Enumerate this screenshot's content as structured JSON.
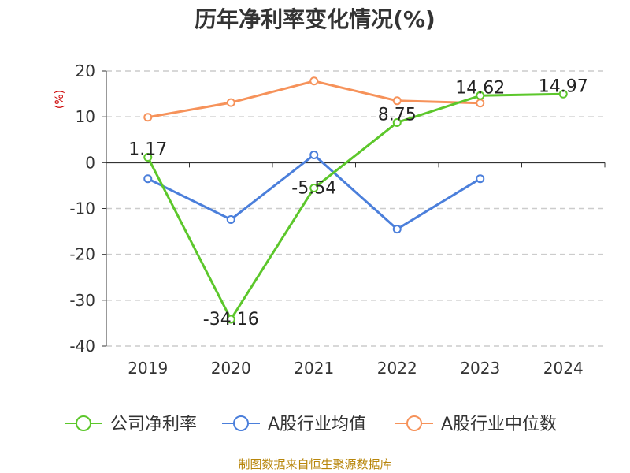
{
  "chart_data": {
    "type": "line",
    "title": "历年净利率变化情况(%)",
    "unit_label": "(%)",
    "x": [
      "2019",
      "2020",
      "2021",
      "2022",
      "2023",
      "2024"
    ],
    "ylim": [
      -40,
      20
    ],
    "yticks": [
      20,
      10,
      0,
      -10,
      -20,
      -30,
      -40
    ],
    "grid": true,
    "legend_position": "bottom",
    "series": [
      {
        "name": "公司净利率",
        "color": "#5cc72b",
        "values": [
          1.17,
          -34.16,
          -5.54,
          8.75,
          14.62,
          14.97
        ],
        "labels": [
          "1.17",
          "-34.16",
          "-5.54",
          "8.75",
          "14.62",
          "14.97"
        ]
      },
      {
        "name": "A股行业均值",
        "color": "#4b7fdb",
        "values": [
          -3.5,
          -12.4,
          1.7,
          -14.5,
          -3.5,
          null
        ]
      },
      {
        "name": "A股行业中位数",
        "color": "#f6925a",
        "values": [
          9.9,
          13.1,
          17.8,
          13.5,
          13.0,
          null
        ]
      }
    ]
  },
  "source": "制图数据来自恒生聚源数据库"
}
